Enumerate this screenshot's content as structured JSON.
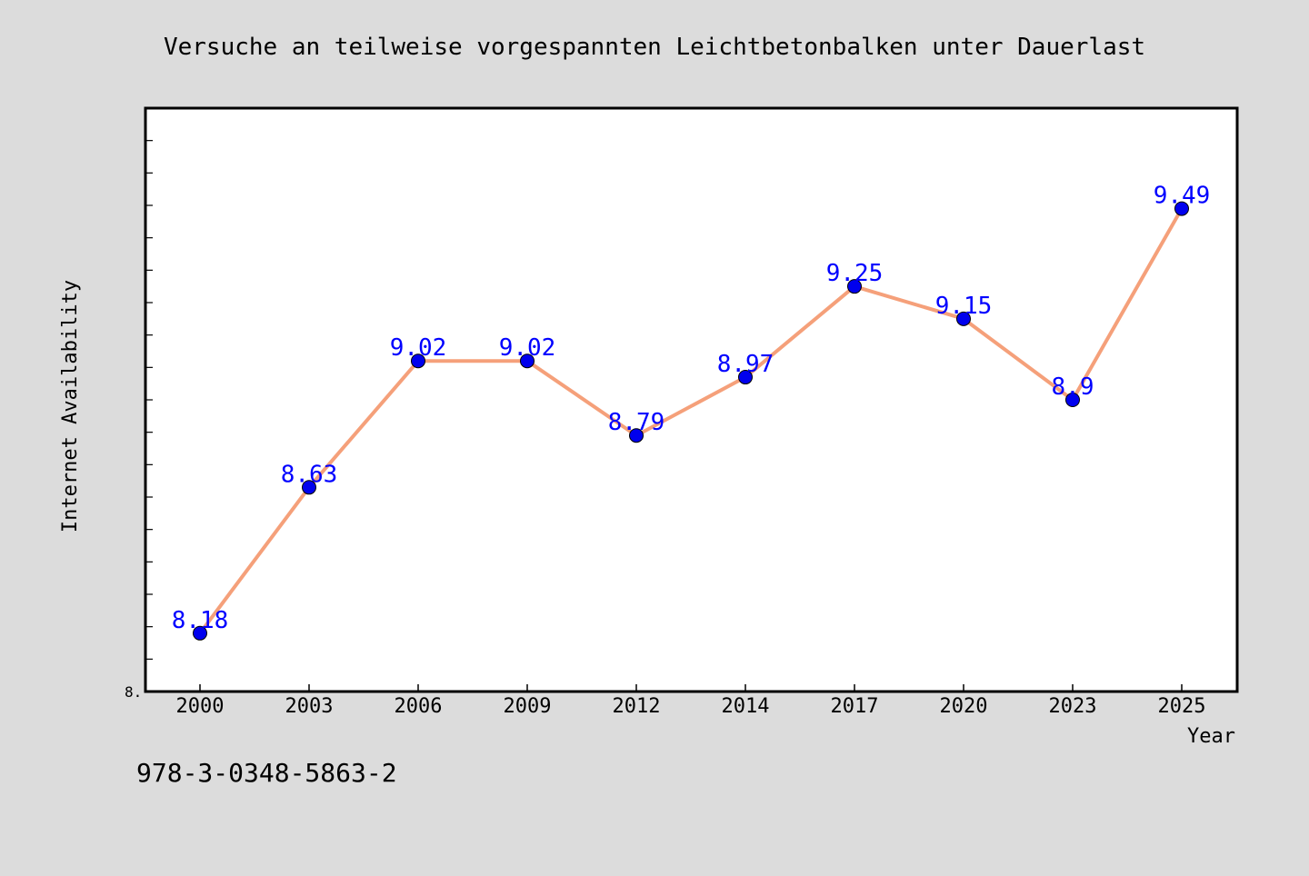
{
  "chart_data": {
    "type": "line",
    "title": "Versuche an teilweise vorgespannten Leichtbetonbalken unter Dauerlast",
    "xlabel": "Year",
    "ylabel": "Internet Availability",
    "categories": [
      "2000",
      "2003",
      "2006",
      "2009",
      "2012",
      "2014",
      "2017",
      "2020",
      "2023",
      "2025"
    ],
    "series": [
      {
        "values": [
          8.18,
          8.63,
          9.02,
          9.02,
          8.79,
          8.97,
          9.25,
          9.15,
          8.9,
          9.49
        ],
        "labels": [
          "8.18",
          "8.63",
          "9.02",
          "9.02",
          "8.79",
          "8.97",
          "9.25",
          "9.15",
          "8.9",
          "9.49"
        ]
      }
    ],
    "ylim": [
      8.0,
      9.8
    ],
    "y_tick_label": "8.",
    "grid": false,
    "legend": "none",
    "colors": {
      "line": "#f5a07a",
      "marker": "#0000ee",
      "data_label": "#0000ff",
      "background": "#dcdcdc",
      "plot_background": "#ffffff"
    }
  },
  "footer": {
    "isbn": "978-3-0348-5863-2"
  }
}
